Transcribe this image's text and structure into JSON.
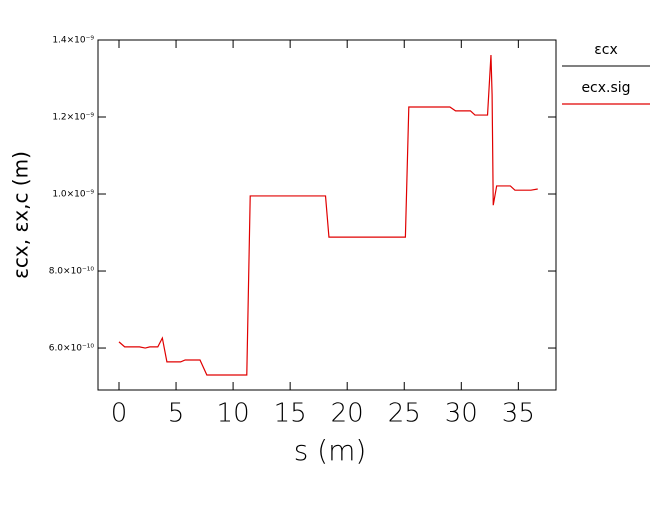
{
  "chart_data": {
    "type": "line",
    "xlabel": "s  (m)",
    "ylabel": "εcx,  εx,c  (m)",
    "legend_title": "εcx",
    "legend": "right",
    "x": [
      0,
      0.5,
      1.8,
      2.3,
      2.7,
      3.4,
      3.8,
      4.0,
      4.2,
      5.4,
      5.8,
      7.1,
      7.7,
      11.2,
      11.5,
      18.1,
      18.4,
      25.1,
      25.4,
      29.0,
      29.5,
      30.8,
      31.2,
      32.3,
      32.6,
      32.7,
      32.8,
      33.1,
      34.3,
      34.7,
      36.1,
      36.7
    ],
    "series": [
      {
        "name": "ecx.sig",
        "color": "#e00000",
        "values": [
          6.16e-10,
          6.03e-10,
          6.03e-10,
          6e-10,
          6.03e-10,
          6.03e-10,
          6.26e-10,
          5.95e-10,
          5.64e-10,
          5.64e-10,
          5.69e-10,
          5.69e-10,
          5.3e-10,
          5.3e-10,
          9.95e-10,
          9.95e-10,
          8.88e-10,
          8.88e-10,
          1.226e-09,
          1.226e-09,
          1.216e-09,
          1.216e-09,
          1.205e-09,
          1.205e-09,
          1.361e-09,
          1.257e-09,
          9.71e-10,
          1.021e-09,
          1.021e-09,
          1.01e-09,
          1.01e-09,
          1.013e-09
        ]
      }
    ],
    "xlim": [
      -1.84,
      38.3
    ],
    "xticks": [
      0,
      5,
      10,
      15,
      20,
      25,
      30,
      35
    ],
    "ylim": [
      4.91e-10,
      1.4e-09
    ],
    "yticks": [
      {
        "value": 6e-10,
        "label": "6.0×10⁻¹⁰"
      },
      {
        "value": 8e-10,
        "label": "8.0×10⁻¹⁰"
      },
      {
        "value": 1e-09,
        "label": "1.0×10⁻⁹"
      },
      {
        "value": 1.2e-09,
        "label": "1.2×10⁻⁹"
      },
      {
        "value": 1.4e-09,
        "label": "1.4×10⁻⁹"
      }
    ],
    "grid": false
  }
}
